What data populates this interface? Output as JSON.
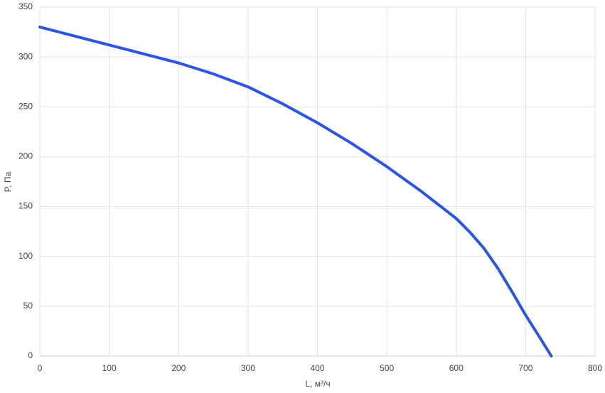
{
  "chart_data": {
    "type": "line",
    "xlabel": "L, м³/ч",
    "ylabel": "P, Па",
    "x": [
      0,
      50,
      100,
      150,
      200,
      250,
      300,
      350,
      400,
      450,
      500,
      550,
      600,
      620,
      640,
      660,
      680,
      700,
      720,
      737
    ],
    "values": [
      330,
      321,
      312,
      303,
      294,
      283,
      270,
      253,
      234,
      213,
      190,
      165,
      138,
      124,
      108,
      88,
      65,
      41,
      19,
      0
    ],
    "color": "#2b55e6",
    "xlim": [
      0,
      800
    ],
    "xticks": [
      0,
      100,
      200,
      300,
      400,
      500,
      600,
      700,
      800
    ],
    "ylim": [
      0,
      350
    ],
    "yticks": [
      0,
      50,
      100,
      150,
      200,
      250,
      300,
      350
    ],
    "grid": true
  }
}
